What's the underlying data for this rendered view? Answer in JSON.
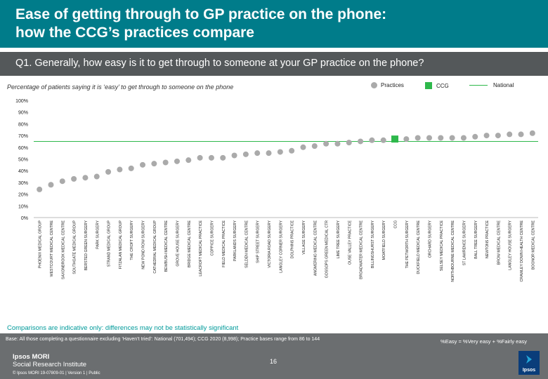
{
  "header": {
    "title": "Ease of getting through to GP practice on the phone:\nhow the CCG’s practices compare"
  },
  "question": "Q1. Generally, how easy is it to get through to someone at your GP practice on the phone?",
  "subtitle": "Percentage of patients saying it is ‘easy’ to get through to someone on the phone",
  "legend": {
    "practices": "Practices",
    "ccg": "CCG",
    "national": "National"
  },
  "colors": {
    "header": "#007c8a",
    "practice_marker": "#aaaaaa",
    "ccg_marker": "#2eb84b",
    "national_line": "#2eb84b",
    "comparisons_text": "#009a9a",
    "footer": "#6b6e70"
  },
  "chart_data": {
    "type": "scatter",
    "ylim": [
      0,
      100
    ],
    "yticks": [
      "0%",
      "10%",
      "20%",
      "30%",
      "40%",
      "50%",
      "60%",
      "70%",
      "80%",
      "90%",
      "100%"
    ],
    "national": 65,
    "categories": [
      "PHOENIX MEDICAL GROUP",
      "WESTCOURT MEDICAL CENTRE",
      "SAXONBROOK MEDICAL CENTRE",
      "SOUTHGATE MEDICAL GROUP",
      "BERSTED GREEN SURGERY",
      "PARK SURGERY",
      "STRAND MEDICAL GROUP",
      "FITZALAN MEDICAL GROUP",
      "THE CROFT SURGERY",
      "NEW POND ROW SURGERY",
      "CATHEDRAL MEDICAL GROUP",
      "BEWBUSH MEDICAL CENTRE",
      "GROVE HOUSE SURGERY",
      "BRIDGE MEDICAL CENTRE",
      "LEACROFT MEDICAL PRACTICE",
      "COPPICE SURGERY",
      "FIELD MEDICAL PRACTICE",
      "PARKLANDS SURGERY",
      "SELDEN MEDICAL CENTRE",
      "SHIP STREET SURGERY",
      "VICTORIA ROAD SURGERY",
      "LANGLEY CORNER SURGERY",
      "DOLPHINS PRACTICE",
      "VILLAGE SURGERY",
      "ANGMERING MEDICAL CENTRE",
      "GOSSOPS GREEN MEDICAL CTR",
      "LIME TREE SURGERY",
      "OUSE VALLEY PRACTICE",
      "BROADWATER MEDICAL CENTRE",
      "BILLINGSHURST SURGERY",
      "MOATFIELD SURGERY",
      "CCG",
      "THE PETWORTH SURGERY",
      "DUCKFIELD MEDICAL CENTRE",
      "ORCHARD SURGERY",
      "SELSEY MEDICAL PRACTICE",
      "NORTHBOURNE MEDICAL CENTRE",
      "ST LAWRENCE SURGERY",
      "BALL TREE SURGERY",
      "NEWTONS PRACTICE",
      "BROW MEDICAL CENTRE",
      "LANGLEY HOUSE SURGERY",
      "CRAWLEY DOWN HEALTH CENTRE",
      "BOGNOR MEDICAL CENTRE"
    ],
    "values": [
      24,
      28,
      31,
      33,
      34,
      35,
      39,
      41,
      42,
      45,
      46,
      47,
      48,
      49,
      51,
      51,
      51,
      53,
      54,
      55,
      55,
      56,
      57,
      60,
      61,
      63,
      63,
      64,
      65,
      66,
      66,
      67,
      67,
      68,
      68,
      68,
      68,
      68,
      69,
      70,
      70,
      71,
      71,
      72
    ],
    "highlight": "CCG"
  },
  "footer": {
    "comparisons": "Comparisons are indicative only: differences may not be statistically significant",
    "base": "Base: All those completing a questionnaire excluding ‘Haven’t tried’: National (701,494); CCG 2020 (8,998); Practice bases range from 86 to 144",
    "formula": "%Easy = %Very easy + %Fairly easy",
    "brand_line1": "Ipsos MORI",
    "brand_line2": "Social Research Institute",
    "copyright": "© Ipsos MORI    19-07809-01 | Version 1 | Public",
    "page_number": "16",
    "logo_text": "Ipsos"
  }
}
